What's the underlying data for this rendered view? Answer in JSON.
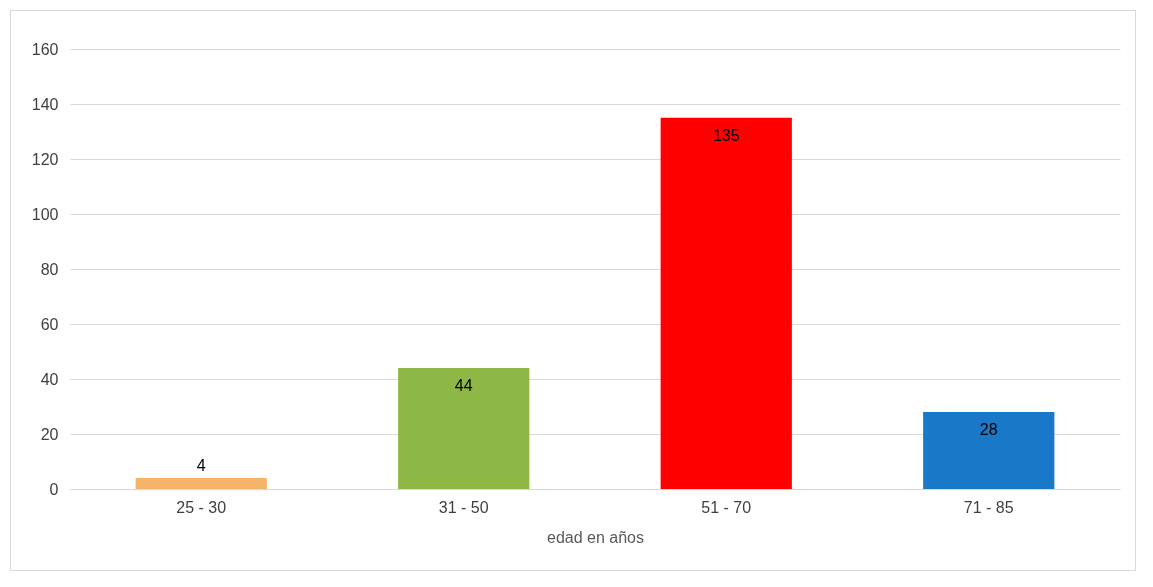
{
  "chart_data": {
    "type": "bar",
    "xlabel": "edad en años",
    "categories": [
      "25 - 30",
      "31 - 50",
      "51 - 70",
      "71 - 85"
    ],
    "values": [
      4,
      44,
      135,
      28
    ],
    "colors": [
      "#f5b46a",
      "#8db846",
      "#ff0000",
      "#1a78c8"
    ],
    "ylim": [
      0,
      160
    ],
    "yticks": [
      0,
      20,
      40,
      60,
      80,
      100,
      120,
      140,
      160
    ],
    "grid": "y",
    "data_labels": true
  }
}
